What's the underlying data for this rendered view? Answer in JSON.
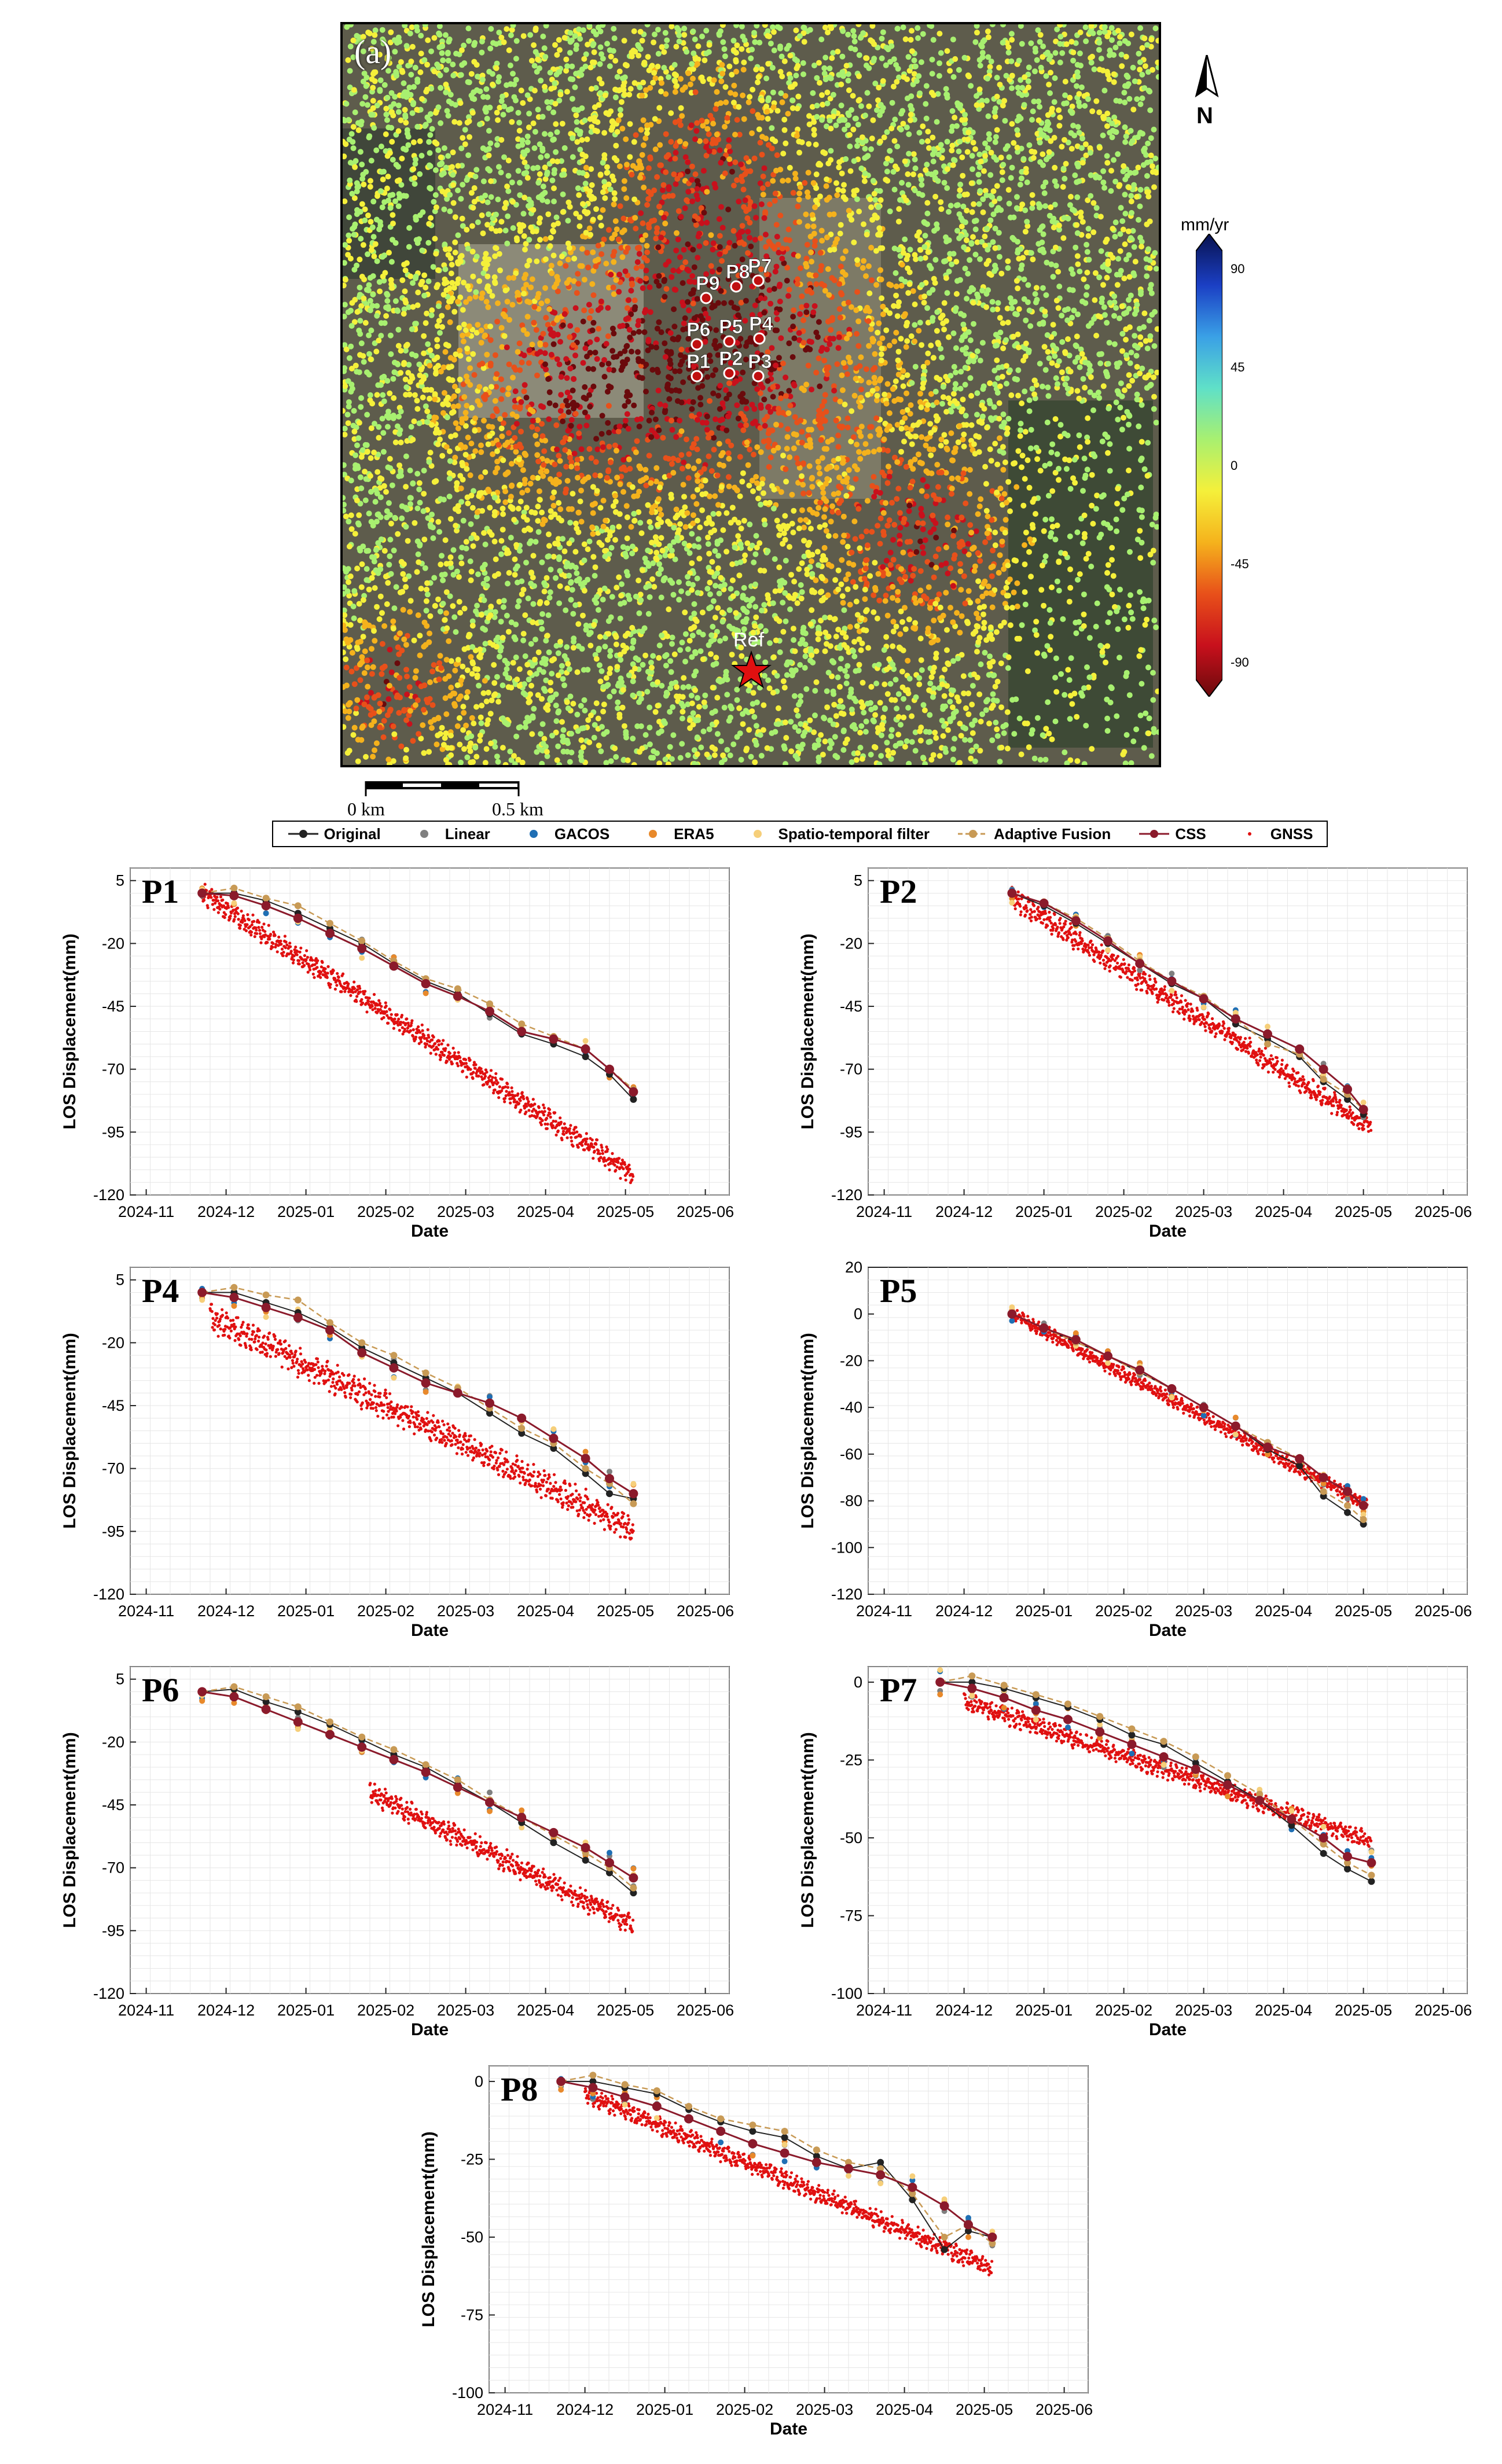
{
  "map": {
    "panel_label": "(a)",
    "north_label": "N",
    "colorbar_unit": "mm/yr",
    "colorbar_ticks": [
      90,
      45,
      0,
      -45,
      -90
    ],
    "colorbar_colors": [
      "#08124f",
      "#1b3fc4",
      "#3aa0e6",
      "#5fe0c8",
      "#a8f070",
      "#f5f03a",
      "#f5b21c",
      "#e8501a",
      "#c8101c",
      "#6a0a0c"
    ],
    "scale_labels": [
      "0 km",
      "0.5 km"
    ],
    "points": [
      "P1",
      "P2",
      "P3",
      "P4",
      "P5",
      "P6",
      "P7",
      "P8",
      "P9"
    ],
    "reference_label": "Ref"
  },
  "legend": [
    {
      "label": "Original",
      "color": "#222222",
      "marker": "dot",
      "line": true
    },
    {
      "label": "Linear",
      "color": "#7f7f7f",
      "marker": "dot",
      "line": false
    },
    {
      "label": "GACOS",
      "color": "#1f6fb4",
      "marker": "dot",
      "line": false
    },
    {
      "label": "ERA5",
      "color": "#e8892b",
      "marker": "dot",
      "line": false
    },
    {
      "label": "Spatio-temporal filter",
      "color": "#f6cf7a",
      "marker": "dot",
      "line": false
    },
    {
      "label": "Adaptive Fusion",
      "color": "#c89a55",
      "marker": "dot",
      "line": true
    },
    {
      "label": "CSS",
      "color": "#8b1a2b",
      "marker": "dot",
      "line": true
    },
    {
      "label": "GNSS",
      "color": "#e01010",
      "marker": "small",
      "line": false
    }
  ],
  "chart_data": [
    {
      "name": "P1",
      "type": "line",
      "xlabel": "Date",
      "ylabel": "LOS Displacement(mm)",
      "yticks": [
        5,
        -20,
        -45,
        -70,
        -95,
        -120
      ],
      "ylim": [
        -120,
        10
      ],
      "xticks": [
        "2024-11",
        "2024-12",
        "2025-01",
        "2025-02",
        "2025-03",
        "2025-04",
        "2025-05",
        "2025-06"
      ],
      "sar_dates": [
        0.7,
        1.1,
        1.5,
        1.9,
        2.3,
        2.7,
        3.1,
        3.5,
        3.9,
        4.3,
        4.7,
        5.1,
        5.5,
        5.8,
        6.1
      ],
      "series": [
        {
          "name": "Original",
          "values": [
            0,
            0,
            -3,
            -8,
            -14,
            -20,
            -28,
            -35,
            -40,
            -48,
            -56,
            -60,
            -65,
            -72,
            -82
          ]
        },
        {
          "name": "Adaptive Fusion",
          "values": [
            0,
            2,
            -2,
            -5,
            -12,
            -19,
            -27,
            -34,
            -38,
            -44,
            -52,
            -57,
            -62,
            -70,
            -78
          ]
        },
        {
          "name": "CSS",
          "values": [
            0,
            -1,
            -5,
            -10,
            -16,
            -22,
            -29,
            -36,
            -41,
            -47,
            -55,
            -58,
            -62,
            -70,
            -79
          ]
        }
      ],
      "gnss": {
        "start": 0.7,
        "end": 6.1,
        "start_value": 0,
        "end_value": -112,
        "amp": 3
      }
    },
    {
      "name": "P2",
      "type": "line",
      "xlabel": "Date",
      "ylabel": "LOS Displacement(mm)",
      "yticks": [
        5,
        -20,
        -45,
        -70,
        -95,
        -120
      ],
      "ylim": [
        -120,
        10
      ],
      "xticks": [
        "2024-11",
        "2024-12",
        "2025-01",
        "2025-02",
        "2025-03",
        "2025-04",
        "2025-05",
        "2025-06"
      ],
      "sar_dates": [
        1.6,
        2.0,
        2.4,
        2.8,
        3.2,
        3.6,
        4.0,
        4.4,
        4.8,
        5.2,
        5.5,
        5.8,
        6.0
      ],
      "series": [
        {
          "name": "Original",
          "values": [
            0,
            -5,
            -12,
            -20,
            -28,
            -36,
            -42,
            -52,
            -58,
            -65,
            -75,
            -82,
            -88
          ]
        },
        {
          "name": "Adaptive Fusion",
          "values": [
            0,
            -4,
            -10,
            -18,
            -27,
            -35,
            -41,
            -50,
            -60,
            -64,
            -74,
            -80,
            -86
          ]
        },
        {
          "name": "CSS",
          "values": [
            0,
            -4,
            -11,
            -19,
            -28,
            -35,
            -42,
            -50,
            -56,
            -62,
            -70,
            -78,
            -86
          ]
        }
      ],
      "gnss": {
        "start": 1.6,
        "end": 6.1,
        "start_value": -2,
        "end_value": -93,
        "amp": 3
      }
    },
    {
      "name": "P4",
      "type": "line",
      "xlabel": "Date",
      "ylabel": "LOS Displacement(mm)",
      "yticks": [
        5,
        -20,
        -45,
        -70,
        -95,
        -120
      ],
      "ylim": [
        -120,
        10
      ],
      "xticks": [
        "2024-11",
        "2024-12",
        "2025-01",
        "2025-02",
        "2025-03",
        "2025-04",
        "2025-05",
        "2025-06"
      ],
      "sar_dates": [
        0.7,
        1.1,
        1.5,
        1.9,
        2.3,
        2.7,
        3.1,
        3.5,
        3.9,
        4.3,
        4.7,
        5.1,
        5.5,
        5.8,
        6.1
      ],
      "series": [
        {
          "name": "Original",
          "values": [
            0,
            0,
            -4,
            -8,
            -14,
            -22,
            -28,
            -34,
            -40,
            -48,
            -56,
            -62,
            -72,
            -80,
            -82
          ]
        },
        {
          "name": "Adaptive Fusion",
          "values": [
            0,
            2,
            -1,
            -3,
            -12,
            -20,
            -25,
            -32,
            -38,
            -46,
            -54,
            -60,
            -70,
            -76,
            -84
          ]
        },
        {
          "name": "CSS",
          "values": [
            0,
            -2,
            -6,
            -10,
            -15,
            -24,
            -30,
            -36,
            -40,
            -44,
            -50,
            -58,
            -66,
            -74,
            -80
          ]
        }
      ],
      "gnss": {
        "start": 0.8,
        "end": 6.1,
        "start_value": -10,
        "end_value": -94,
        "amp": 4
      }
    },
    {
      "name": "P5",
      "type": "line",
      "xlabel": "Date",
      "ylabel": "LOS Displacement(mm)",
      "yticks": [
        20,
        0,
        -20,
        -40,
        -60,
        -80,
        -100,
        -120
      ],
      "ylim": [
        -120,
        20
      ],
      "xticks": [
        "2024-11",
        "2024-12",
        "2025-01",
        "2025-02",
        "2025-03",
        "2025-04",
        "2025-05",
        "2025-06"
      ],
      "sar_dates": [
        1.6,
        2.0,
        2.4,
        2.8,
        3.2,
        3.6,
        4.0,
        4.4,
        4.8,
        5.2,
        5.5,
        5.8,
        6.0
      ],
      "series": [
        {
          "name": "Original",
          "values": [
            0,
            -6,
            -12,
            -18,
            -25,
            -32,
            -40,
            -48,
            -58,
            -65,
            -78,
            -85,
            -90
          ]
        },
        {
          "name": "Adaptive Fusion",
          "values": [
            0,
            -6,
            -12,
            -18,
            -25,
            -32,
            -40,
            -48,
            -55,
            -62,
            -76,
            -82,
            -88
          ]
        },
        {
          "name": "CSS",
          "values": [
            0,
            -6,
            -11,
            -18,
            -24,
            -32,
            -40,
            -48,
            -57,
            -62,
            -70,
            -76,
            -82
          ]
        }
      ],
      "gnss": {
        "start": 1.6,
        "end": 6.05,
        "start_value": 0,
        "end_value": -82,
        "amp": 2
      }
    },
    {
      "name": "P6",
      "type": "line",
      "xlabel": "Date",
      "ylabel": "LOS Displacement(mm)",
      "yticks": [
        5,
        -20,
        -45,
        -70,
        -95,
        -120
      ],
      "ylim": [
        -120,
        10
      ],
      "xticks": [
        "2024-11",
        "2024-12",
        "2025-01",
        "2025-02",
        "2025-03",
        "2025-04",
        "2025-05",
        "2025-06"
      ],
      "sar_dates": [
        0.7,
        1.1,
        1.5,
        1.9,
        2.3,
        2.7,
        3.1,
        3.5,
        3.9,
        4.3,
        4.7,
        5.1,
        5.5,
        5.8,
        6.1
      ],
      "series": [
        {
          "name": "Original",
          "values": [
            0,
            1,
            -4,
            -8,
            -13,
            -19,
            -25,
            -30,
            -37,
            -44,
            -52,
            -60,
            -67,
            -72,
            -80
          ]
        },
        {
          "name": "Adaptive Fusion",
          "values": [
            0,
            2,
            -2,
            -6,
            -12,
            -18,
            -23,
            -29,
            -35,
            -43,
            -50,
            -57,
            -64,
            -70,
            -78
          ]
        },
        {
          "name": "CSS",
          "values": [
            0,
            -2,
            -7,
            -12,
            -17,
            -22,
            -27,
            -32,
            -38,
            -44,
            -50,
            -56,
            -62,
            -68,
            -74
          ]
        }
      ],
      "gnss": {
        "start": 2.8,
        "end": 6.1,
        "start_value": -40,
        "end_value": -93,
        "amp": 3
      }
    },
    {
      "name": "P7",
      "type": "line",
      "xlabel": "Date",
      "ylabel": "LOS Displacement(mm)",
      "yticks": [
        0,
        -25,
        -50,
        -75,
        -100
      ],
      "ylim": [
        -100,
        5
      ],
      "xticks": [
        "2024-11",
        "2024-12",
        "2025-01",
        "2025-02",
        "2025-03",
        "2025-04",
        "2025-05",
        "2025-06"
      ],
      "sar_dates": [
        0.7,
        1.1,
        1.5,
        1.9,
        2.3,
        2.7,
        3.1,
        3.5,
        3.9,
        4.3,
        4.7,
        5.1,
        5.5,
        5.8,
        6.1
      ],
      "series": [
        {
          "name": "Original",
          "values": [
            0,
            0,
            -2,
            -5,
            -8,
            -12,
            -17,
            -20,
            -26,
            -32,
            -38,
            -46,
            -55,
            -60,
            -64
          ]
        },
        {
          "name": "Adaptive Fusion",
          "values": [
            0,
            2,
            -1,
            -4,
            -7,
            -11,
            -15,
            -19,
            -24,
            -30,
            -36,
            -44,
            -52,
            -58,
            -62
          ]
        },
        {
          "name": "CSS",
          "values": [
            0,
            -2,
            -5,
            -9,
            -12,
            -16,
            -20,
            -24,
            -28,
            -33,
            -38,
            -44,
            -50,
            -56,
            -58
          ]
        }
      ],
      "gnss": {
        "start": 1.0,
        "end": 6.1,
        "start_value": -6,
        "end_value": -51,
        "amp": 2
      }
    },
    {
      "name": "P8",
      "type": "line",
      "xlabel": "Date",
      "ylabel": "LOS Displacement(mm)",
      "yticks": [
        0,
        -25,
        -50,
        -75,
        -100
      ],
      "ylim": [
        -100,
        5
      ],
      "xticks": [
        "2024-11",
        "2024-12",
        "2025-01",
        "2025-02",
        "2025-03",
        "2025-04",
        "2025-05",
        "2025-06"
      ],
      "sar_dates": [
        0.7,
        1.1,
        1.5,
        1.9,
        2.3,
        2.7,
        3.1,
        3.5,
        3.9,
        4.3,
        4.7,
        5.1,
        5.5,
        5.8,
        6.1
      ],
      "series": [
        {
          "name": "Original",
          "values": [
            0,
            0,
            -2,
            -4,
            -9,
            -13,
            -16,
            -18,
            -24,
            -28,
            -26,
            -38,
            -54,
            -48,
            -50
          ]
        },
        {
          "name": "Adaptive Fusion",
          "values": [
            0,
            2,
            -1,
            -3,
            -8,
            -12,
            -14,
            -16,
            -22,
            -26,
            -28,
            -36,
            -50,
            -46,
            -52
          ]
        },
        {
          "name": "CSS",
          "values": [
            0,
            -2,
            -5,
            -8,
            -12,
            -16,
            -20,
            -23,
            -26,
            -28,
            -30,
            -34,
            -40,
            -46,
            -50
          ]
        }
      ],
      "gnss": {
        "start": 1.0,
        "end": 6.1,
        "start_value": -4,
        "end_value": -60,
        "amp": 2
      }
    }
  ]
}
